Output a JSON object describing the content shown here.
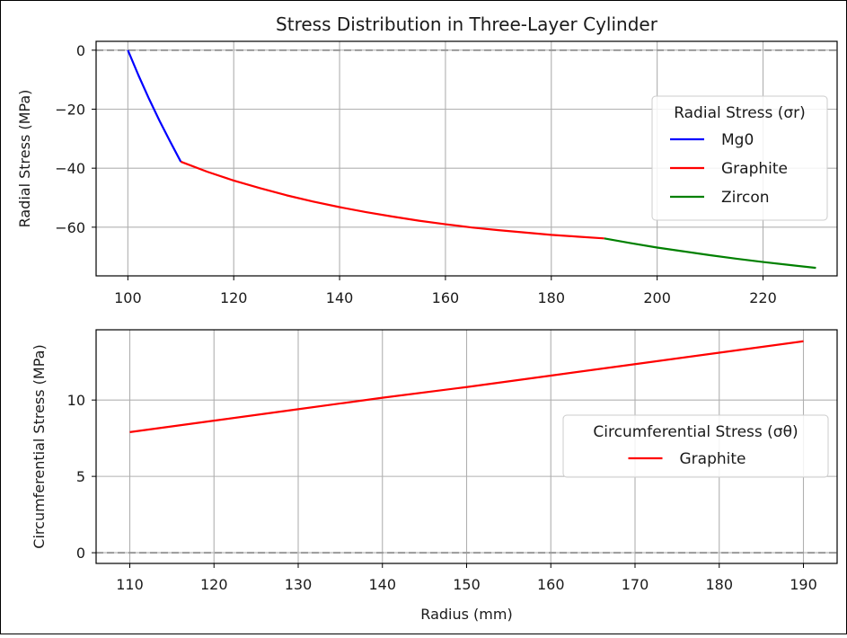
{
  "chart_data": [
    {
      "type": "line",
      "title": "Stress Distribution in Three-Layer Cylinder",
      "xlabel": "",
      "ylabel": "Radial Stress (MPa)",
      "xlim": [
        94,
        234
      ],
      "ylim": [
        -76.5,
        3
      ],
      "xticks": [
        100,
        120,
        140,
        160,
        180,
        200,
        220
      ],
      "yticks": [
        0,
        -20,
        -40,
        -60
      ],
      "ytick_labels": [
        "0",
        "−20",
        "−40",
        "−60"
      ],
      "grid": true,
      "reference_line": {
        "y": 0,
        "style": "dashed",
        "color": "#999999"
      },
      "legend": {
        "title": "Radial Stress (σr)",
        "placement": "center-right"
      },
      "series": [
        {
          "name": "Mg0",
          "color": "#0000ff",
          "x": [
            100,
            102,
            104,
            106,
            108,
            110
          ],
          "y": [
            0,
            -8.5,
            -16.5,
            -24,
            -31,
            -37.8
          ]
        },
        {
          "name": "Graphite",
          "color": "#ff0000",
          "x": [
            110,
            115,
            120,
            125,
            130,
            135,
            140,
            145,
            150,
            155,
            160,
            165,
            170,
            175,
            180,
            185,
            190
          ],
          "y": [
            -37.8,
            -41.2,
            -44.2,
            -46.8,
            -49.2,
            -51.3,
            -53.2,
            -54.9,
            -56.4,
            -57.8,
            -59.0,
            -60.1,
            -61.0,
            -61.8,
            -62.6,
            -63.2,
            -63.8
          ]
        },
        {
          "name": "Zircon",
          "color": "#008000",
          "x": [
            190,
            195,
            200,
            205,
            210,
            215,
            220,
            225,
            230
          ],
          "y": [
            -63.8,
            -65.4,
            -66.9,
            -68.2,
            -69.5,
            -70.7,
            -71.8,
            -72.8,
            -73.8
          ]
        }
      ]
    },
    {
      "type": "line",
      "title": "",
      "xlabel": "Radius (mm)",
      "ylabel": "Circumferential Stress (MPa)",
      "xlim": [
        106,
        194
      ],
      "ylim": [
        -0.7,
        14.6
      ],
      "xticks": [
        110,
        120,
        130,
        140,
        150,
        160,
        170,
        180,
        190
      ],
      "yticks": [
        0,
        5,
        10
      ],
      "grid": true,
      "reference_line": {
        "y": 0,
        "style": "dashed",
        "color": "#999999"
      },
      "legend": {
        "title": "Circumferential Stress (σθ)",
        "placement": "center-right"
      },
      "series": [
        {
          "name": "Graphite",
          "color": "#ff0000",
          "x": [
            110,
            120,
            130,
            140,
            150,
            160,
            170,
            180,
            190
          ],
          "y": [
            7.9,
            8.65,
            9.4,
            10.15,
            10.85,
            11.6,
            12.35,
            13.1,
            13.85
          ]
        }
      ]
    }
  ]
}
